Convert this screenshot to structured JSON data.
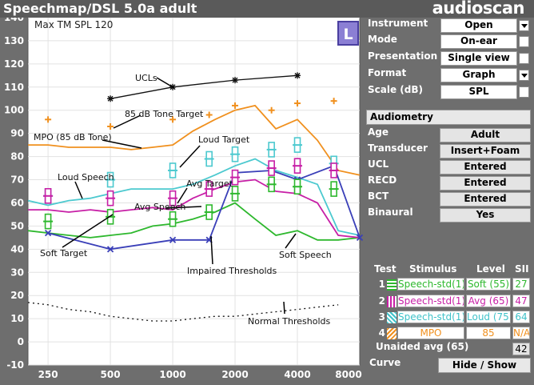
{
  "app": {
    "title": "Speechmap/DSL 5.0a adult",
    "brand": "audioscan"
  },
  "graph": {
    "max_label": "Max TM SPL 120",
    "ear_badge": "L",
    "y_ticks": [
      "140",
      "130",
      "120",
      "110",
      "100",
      "90",
      "80",
      "70",
      "60",
      "50",
      "40",
      "30",
      "20",
      "10",
      "0",
      "-10"
    ],
    "x_ticks": [
      "250",
      "500",
      "1000",
      "2000",
      "4000",
      "8000"
    ],
    "annotations": {
      "ucls": "UCLs",
      "tone_target": "85 dB Tone Target",
      "mpo": "MPO (85 dB Tone)",
      "loud_target": "Loud Target",
      "loud_speech": "Loud Speech",
      "avg_target": "Avg Target",
      "avg_speech": "Avg Speech",
      "soft_target": "Soft Target",
      "impaired": "Impaired Thresholds",
      "soft_speech": "Soft Speech",
      "normal": "Normal Thresholds"
    },
    "colors": {
      "mpo": "#f0901e",
      "loud": "#4cc9cf",
      "avg": "#c71fa6",
      "soft": "#2eb82e",
      "thresholds": "#3a3fb8",
      "ucl": "#111111",
      "normal": "#111111"
    }
  },
  "chart_data": {
    "type": "line",
    "x": [
      250,
      500,
      1000,
      2000,
      4000,
      8000
    ],
    "xscale": "log",
    "xlim": [
      200,
      8000
    ],
    "ylim": [
      -10,
      140
    ],
    "grid": true,
    "series": [
      {
        "name": "MPO (85 dB Tone)",
        "x": [
          200,
          250,
          315,
          400,
          500,
          630,
          800,
          1000,
          1250,
          1600,
          2000,
          2500,
          3150,
          4000,
          5000,
          6300,
          8000
        ],
        "values": [
          85,
          85,
          84,
          84,
          84,
          83,
          84,
          85,
          91,
          96,
          100,
          102,
          92,
          96,
          87,
          74,
          72
        ]
      },
      {
        "name": "Loud Speech",
        "x": [
          200,
          250,
          315,
          400,
          500,
          630,
          800,
          1000,
          1250,
          1600,
          2000,
          2500,
          3150,
          4000,
          5000,
          6300,
          8000
        ],
        "values": [
          61,
          59,
          61,
          62,
          64,
          66,
          66,
          66,
          68,
          72,
          76,
          79,
          74,
          71,
          68,
          48,
          46
        ]
      },
      {
        "name": "Avg Speech",
        "x": [
          200,
          250,
          315,
          400,
          500,
          630,
          800,
          1000,
          1250,
          1600,
          2000,
          2500,
          3150,
          4000,
          5000,
          6300,
          8000
        ],
        "values": [
          57,
          57,
          56,
          57,
          56,
          57,
          58,
          57,
          62,
          66,
          69,
          70,
          65,
          64,
          60,
          46,
          45
        ]
      },
      {
        "name": "Soft Speech",
        "x": [
          200,
          250,
          315,
          400,
          500,
          630,
          800,
          1000,
          1250,
          1600,
          2000,
          2500,
          3150,
          4000,
          5000,
          6300,
          8000
        ],
        "values": [
          48,
          47,
          46,
          45,
          46,
          47,
          50,
          51,
          53,
          56,
          60,
          53,
          46,
          48,
          44,
          44,
          45
        ]
      },
      {
        "name": "Impaired Thresholds",
        "x": [
          250,
          500,
          1000,
          1500,
          2000,
          3000,
          4000,
          6000,
          8000
        ],
        "values": [
          47,
          40,
          44,
          44,
          73,
          74,
          70,
          76,
          45
        ]
      },
      {
        "name": "UCLs",
        "x": [
          500,
          1000,
          2000,
          4000
        ],
        "values": [
          105,
          110,
          113,
          115
        ]
      },
      {
        "name": "85 dB Tone Target",
        "x": [
          250,
          500,
          1000,
          1500,
          2000,
          3000,
          4000,
          6000
        ],
        "values": [
          96,
          93,
          96,
          98,
          102,
          100,
          103,
          104
        ]
      },
      {
        "name": "Loud Target",
        "x": [
          250,
          500,
          1000,
          1500,
          2000,
          3000,
          4000,
          6000
        ],
        "values": [
          63,
          70,
          74,
          79,
          81,
          83,
          85,
          77
        ]
      },
      {
        "name": "Avg Target",
        "x": [
          250,
          500,
          1000,
          1500,
          2000,
          3000,
          4000,
          6000
        ],
        "values": [
          63,
          62,
          62,
          66,
          71,
          75,
          76,
          74
        ]
      },
      {
        "name": "Soft Target",
        "x": [
          250,
          500,
          1000,
          1500,
          2000,
          3000,
          4000,
          6000
        ],
        "values": [
          52,
          54,
          53,
          56,
          64,
          68,
          67,
          66
        ]
      },
      {
        "name": "Normal Thresholds",
        "x": [
          200,
          250,
          315,
          400,
          500,
          630,
          800,
          1000,
          1250,
          1600,
          2000,
          2500,
          3150,
          4000,
          5000,
          6300
        ],
        "values": [
          17,
          16,
          14,
          13,
          11,
          10,
          9,
          9,
          10,
          11,
          11,
          12,
          13,
          14,
          15,
          16
        ]
      }
    ]
  },
  "panel": {
    "rows": [
      {
        "label": "Instrument",
        "value": "Open",
        "ctrl": "dropdown"
      },
      {
        "label": "Mode",
        "value": "On-ear",
        "ctrl": "box"
      },
      {
        "label": "Presentation",
        "value": "Single view",
        "ctrl": "box"
      },
      {
        "label": "Format",
        "value": "Graph",
        "ctrl": "dropdown"
      },
      {
        "label": "Scale (dB)",
        "value": "SPL",
        "ctrl": "box"
      }
    ],
    "audiometry": {
      "button": "Audiometry",
      "rows": [
        {
          "label": "Age",
          "value": "Adult"
        },
        {
          "label": "Transducer",
          "value": "Insert+Foam"
        },
        {
          "label": "UCL",
          "value": "Entered"
        },
        {
          "label": "RECD",
          "value": "Entered"
        },
        {
          "label": "BCT",
          "value": "Entered"
        },
        {
          "label": "Binaural",
          "value": "Yes"
        }
      ]
    }
  },
  "tests": {
    "headers": {
      "test": "Test",
      "stimulus": "Stimulus",
      "level": "Level",
      "sii": "SII"
    },
    "rows": [
      {
        "n": "1",
        "stimulus": "Speech-std(1)",
        "level": "Soft (55)",
        "sii": "27",
        "color": "#2eb82e"
      },
      {
        "n": "2",
        "stimulus": "Speech-std(1)",
        "level": "Avg (65)",
        "sii": "47",
        "color": "#c71fa6"
      },
      {
        "n": "3",
        "stimulus": "Speech-std(1)",
        "level": "Loud (75)",
        "sii": "64",
        "color": "#3fc2c9"
      },
      {
        "n": "4",
        "stimulus": "MPO",
        "level": "85",
        "sii": "N/A",
        "color": "#f0901e"
      }
    ],
    "unaided_label": "Unaided avg (65)",
    "unaided_value": "42",
    "curve_label": "Curve",
    "curve_button": "Hide / Show"
  }
}
